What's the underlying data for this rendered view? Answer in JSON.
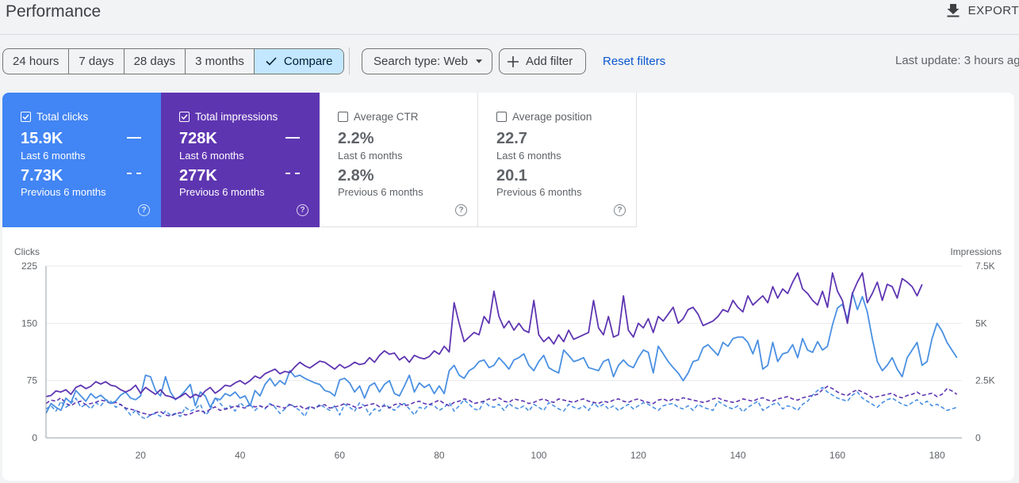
{
  "header": {
    "title": "Performance",
    "export_label": "EXPORT"
  },
  "toolbar": {
    "ranges": [
      "24 hours",
      "7 days",
      "28 days",
      "3 months"
    ],
    "compare_label": "Compare",
    "search_type": "Search type: Web",
    "add_filter": "Add filter",
    "reset_filters": "Reset filters",
    "last_update": "Last update: 3 hours ag"
  },
  "metrics": [
    {
      "label": "Total clicks",
      "checked": true,
      "current": "15.9K",
      "current_label": "Last 6 months",
      "previous": "7.73K",
      "previous_label": "Previous 6 months",
      "color": "#4285f4"
    },
    {
      "label": "Total impressions",
      "checked": true,
      "current": "728K",
      "current_label": "Last 6 months",
      "previous": "277K",
      "previous_label": "Previous 6 months",
      "color": "#5e35b1"
    },
    {
      "label": "Average CTR",
      "checked": false,
      "current": "2.2%",
      "current_label": "Last 6 months",
      "previous": "2.8%",
      "previous_label": "Previous 6 months"
    },
    {
      "label": "Average position",
      "checked": false,
      "current": "22.7",
      "current_label": "Last 6 months",
      "previous": "20.1",
      "previous_label": "Previous 6 months"
    }
  ],
  "help_glyph": "?",
  "chart_data": {
    "type": "line",
    "ylabel_left": "Clicks",
    "ylabel_right": "Impressions",
    "y_left_ticks": [
      "0",
      "75",
      "150",
      "225"
    ],
    "y_left_range": [
      0,
      225
    ],
    "y_right_ticks": [
      "0",
      "2.5K",
      "5K",
      "7.5K"
    ],
    "y_right_range": [
      0,
      7500
    ],
    "x_ticks": [
      20,
      40,
      60,
      80,
      100,
      120,
      140,
      160,
      180
    ],
    "x_range": [
      1,
      185
    ],
    "grid": true,
    "series": [
      {
        "name": "Clicks",
        "axis": "left",
        "style": "solid",
        "color": "#4a90e2",
        "values": [
          32,
          45,
          40,
          36,
          52,
          46,
          62,
          55,
          48,
          58,
          52,
          56,
          50,
          45,
          48,
          56,
          60,
          52,
          50,
          55,
          82,
          80,
          62,
          55,
          80,
          60,
          50,
          55,
          62,
          70,
          42,
          60,
          55,
          40,
          52,
          50,
          58,
          55,
          60,
          52,
          55,
          42,
          62,
          55,
          70,
          78,
          68,
          75,
          70,
          88,
          80,
          82,
          78,
          75,
          72,
          70,
          62,
          60,
          55,
          76,
          78,
          72,
          60,
          68,
          52,
          68,
          72,
          60,
          70,
          75,
          58,
          55,
          68,
          82,
          60,
          72,
          66,
          70,
          58,
          68,
          58,
          88,
          95,
          82,
          78,
          88,
          92,
          100,
          102,
          92,
          95,
          105,
          98,
          90,
          102,
          105,
          110,
          95,
          88,
          100,
          108,
          92,
          88,
          85,
          115,
          108,
          100,
          102,
          105,
          92,
          90,
          88,
          100,
          103,
          80,
          95,
          102,
          95,
          92,
          105,
          115,
          112,
          85,
          120,
          110,
          100,
          92,
          85,
          75,
          85,
          100,
          102,
          118,
          122,
          115,
          108,
          125,
          120,
          130,
          132,
          132,
          125,
          110,
          128,
          90,
          95,
          125,
          100,
          110,
          112,
          122,
          105,
          130,
          115,
          112,
          126,
          115,
          120,
          148,
          170,
          175,
          155,
          190,
          168,
          185,
          165,
          130,
          100,
          88,
          95,
          105,
          90,
          80,
          105,
          115,
          125,
          95,
          100,
          130,
          150,
          140,
          125,
          115,
          105
        ],
        "approx": true
      },
      {
        "name": "Impressions",
        "axis": "right",
        "style": "solid",
        "color": "#5e35b1",
        "values": [
          1800,
          1850,
          2050,
          2000,
          2100,
          1900,
          2200,
          2300,
          2150,
          2250,
          2450,
          2350,
          2450,
          2300,
          2250,
          2100,
          2000,
          2100,
          2300,
          1950,
          2200,
          2050,
          1900,
          2100,
          1850,
          1800,
          1700,
          1800,
          1950,
          1750,
          1900,
          1800,
          2050,
          2200,
          1950,
          2100,
          2300,
          2250,
          2400,
          2500,
          2350,
          2500,
          2700,
          2600,
          2800,
          2900,
          3000,
          2800,
          2900,
          2850,
          3100,
          3300,
          3150,
          3050,
          3200,
          3350,
          3300,
          3150,
          3000,
          3200,
          3050,
          3150,
          3300,
          3200,
          3250,
          3500,
          3300,
          3600,
          3800,
          3650,
          3700,
          3400,
          3550,
          3300,
          3600,
          3500,
          3450,
          3550,
          3800,
          3650,
          4000,
          3750,
          5900,
          5000,
          4200,
          4400,
          4600,
          4500,
          5300,
          5000,
          6400,
          5300,
          4800,
          5100,
          4700,
          5000,
          4700,
          4600,
          6000,
          4500,
          4200,
          4400,
          4100,
          4500,
          4200,
          4700,
          4300,
          4400,
          4500,
          4600,
          6000,
          4800,
          4500,
          5300,
          4400,
          4500,
          6200,
          4700,
          4400,
          5000,
          4800,
          5200,
          4600,
          5300,
          5100,
          5400,
          5700,
          5000,
          5200,
          5600,
          5700,
          5400,
          4900,
          5000,
          5100,
          5300,
          5600,
          5500,
          6000,
          5700,
          5500,
          6200,
          5800,
          6000,
          6200,
          5900,
          6600,
          6100,
          6500,
          6300,
          6800,
          7200,
          6500,
          6300,
          6000,
          5800,
          6400,
          5700,
          7200,
          6400,
          6000,
          5000,
          6300,
          6800,
          7200,
          5900,
          6300,
          6800,
          6000,
          6700,
          6600,
          6100,
          6950,
          6800,
          6600,
          6200,
          6700
        ],
        "approx": true
      },
      {
        "name": "Clicks (previous)",
        "axis": "left",
        "style": "dashed",
        "color": "#4a90e2",
        "values": [
          38,
          42,
          35,
          48,
          40,
          45,
          52,
          40,
          44,
          38,
          46,
          42,
          50,
          48,
          40,
          44,
          38,
          30,
          36,
          28,
          25,
          30,
          32,
          28,
          35,
          30,
          32,
          28,
          40,
          35,
          38,
          44,
          30,
          36,
          52,
          45,
          38,
          42,
          35,
          46,
          40,
          44,
          36,
          42,
          38,
          45,
          40,
          32,
          38,
          45,
          40,
          36,
          28,
          42,
          38,
          44,
          40,
          36,
          42,
          30,
          44,
          40,
          35,
          46,
          42,
          30,
          38,
          35,
          44,
          40,
          36,
          42,
          45,
          38,
          30,
          40,
          38,
          44,
          42,
          36,
          40,
          46,
          35,
          42,
          50,
          44,
          38,
          36,
          48,
          42,
          40,
          44,
          36,
          45,
          40,
          38,
          42,
          35,
          44,
          40,
          36,
          46,
          42,
          38,
          35,
          44,
          40,
          38,
          42,
          36,
          46,
          40,
          44,
          38,
          42,
          36,
          40,
          44,
          38,
          42,
          46,
          44,
          40,
          36,
          42,
          44,
          45,
          40,
          38,
          42,
          36,
          44,
          40,
          38,
          36,
          48,
          44,
          40,
          38,
          42,
          34,
          40,
          44,
          48,
          36,
          40,
          44,
          46,
          38,
          42,
          40,
          36,
          44,
          48,
          56,
          62,
          66,
          60,
          56,
          52,
          50,
          48,
          56,
          60,
          52,
          48,
          44,
          40,
          46,
          50,
          52,
          48,
          44,
          42,
          46,
          50,
          44,
          48,
          42,
          44,
          40,
          36,
          38,
          40
        ],
        "approx": true
      },
      {
        "name": "Impressions (previous)",
        "axis": "right",
        "style": "dashed",
        "color": "#5e35b1",
        "values": [
          1500,
          1650,
          1600,
          1750,
          1500,
          1400,
          1550,
          1600,
          1450,
          1500,
          1550,
          1650,
          1600,
          1500,
          1550,
          1450,
          1300,
          1250,
          1200,
          1100,
          1050,
          1000,
          1100,
          1150,
          1000,
          950,
          1050,
          1100,
          1000,
          1050,
          1150,
          1200,
          1100,
          1250,
          1350,
          1200,
          1250,
          1300,
          1400,
          1350,
          1300,
          1450,
          1350,
          1400,
          1300,
          1450,
          1400,
          1350,
          1300,
          1450,
          1350,
          1400,
          1250,
          1350,
          1300,
          1400,
          1450,
          1300,
          1350,
          1400,
          1500,
          1450,
          1350,
          1300,
          1400,
          1450,
          1500,
          1350,
          1400,
          1300,
          1450,
          1500,
          1400,
          1450,
          1550,
          1600,
          1500,
          1450,
          1550,
          1650,
          1500,
          1400,
          1550,
          1600,
          1700,
          1650,
          1500,
          1550,
          1600,
          1700,
          1650,
          1750,
          1600,
          1550,
          1700,
          1650,
          1600,
          1500,
          1550,
          1650,
          1700,
          1600,
          1550,
          1700,
          1650,
          1600,
          1550,
          1650,
          1700,
          1600,
          1550,
          1500,
          1600,
          1550,
          1650,
          1700,
          1600,
          1550,
          1650,
          1700,
          1600,
          1550,
          1500,
          1650,
          1700,
          1600,
          1700,
          1650,
          1750,
          1700,
          1650,
          1600,
          1550,
          1600,
          1700,
          1750,
          1650,
          1600,
          1550,
          1600,
          1700,
          1650,
          1600,
          1700,
          1750,
          1650,
          1600,
          1700,
          1750,
          1800,
          1700,
          1650,
          1750,
          1800,
          1850,
          1900,
          2100,
          2250,
          2150,
          2000,
          1900,
          1850,
          2000,
          2100,
          2000,
          1900,
          1750,
          1800,
          1850,
          1900,
          1950,
          1800,
          1750,
          1850,
          1900,
          2000,
          1850,
          1900,
          1950,
          1800,
          1900,
          2150,
          2050,
          1900
        ],
        "approx": true
      }
    ]
  }
}
